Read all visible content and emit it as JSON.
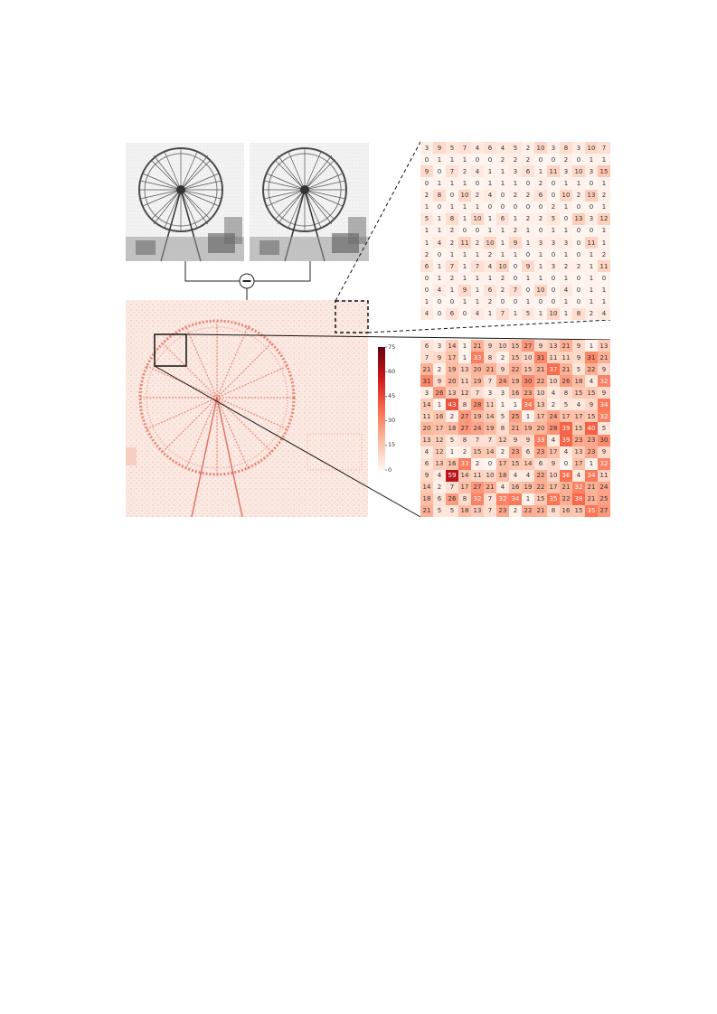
{
  "operator_symbol": "−",
  "colorbar": {
    "ticks": [
      "75",
      "60",
      "45",
      "30",
      "15",
      "0"
    ],
    "colors": [
      "#fff5f0",
      "#fcbba1",
      "#fb6a4a",
      "#cb181d",
      "#67000d"
    ]
  },
  "small_matrix": [
    [
      3,
      9,
      5,
      7,
      4,
      6,
      4,
      5,
      2,
      10,
      3,
      8,
      3,
      10,
      7
    ],
    [
      0,
      1,
      1,
      1,
      0,
      0,
      2,
      2,
      2,
      0,
      0,
      2,
      0,
      1,
      1
    ],
    [
      9,
      0,
      7,
      2,
      4,
      1,
      1,
      3,
      6,
      1,
      11,
      3,
      10,
      3,
      15
    ],
    [
      0,
      1,
      1,
      1,
      0,
      1,
      1,
      1,
      0,
      2,
      0,
      1,
      1,
      0,
      1
    ],
    [
      2,
      8,
      0,
      10,
      2,
      4,
      0,
      2,
      2,
      6,
      0,
      10,
      2,
      13,
      2
    ],
    [
      1,
      0,
      1,
      1,
      1,
      0,
      0,
      0,
      0,
      0,
      2,
      1,
      0,
      0,
      1
    ],
    [
      5,
      1,
      8,
      1,
      10,
      1,
      6,
      1,
      2,
      2,
      5,
      0,
      13,
      3,
      12
    ],
    [
      1,
      1,
      2,
      0,
      0,
      1,
      1,
      2,
      1,
      0,
      1,
      1,
      0,
      0,
      1
    ],
    [
      1,
      4,
      2,
      11,
      2,
      10,
      1,
      9,
      1,
      3,
      3,
      3,
      0,
      11,
      1
    ],
    [
      2,
      0,
      1,
      1,
      1,
      2,
      1,
      1,
      0,
      1,
      0,
      1,
      0,
      1,
      2
    ],
    [
      6,
      1,
      7,
      1,
      7,
      4,
      10,
      0,
      9,
      1,
      3,
      2,
      2,
      1,
      11
    ],
    [
      0,
      1,
      2,
      1,
      1,
      1,
      2,
      0,
      1,
      1,
      0,
      1,
      0,
      1,
      0
    ],
    [
      0,
      4,
      1,
      9,
      1,
      6,
      2,
      7,
      0,
      10,
      0,
      4,
      0,
      1,
      1
    ],
    [
      1,
      0,
      0,
      1,
      1,
      2,
      0,
      0,
      1,
      0,
      0,
      1,
      0,
      1,
      1
    ],
    [
      4,
      0,
      6,
      0,
      4,
      1,
      7,
      1,
      5,
      1,
      10,
      1,
      8,
      2,
      4
    ]
  ],
  "big_matrix": [
    [
      6,
      3,
      14,
      1,
      21,
      9,
      10,
      15,
      27,
      9,
      13,
      21,
      9,
      1,
      13
    ],
    [
      7,
      9,
      17,
      1,
      33,
      8,
      2,
      15,
      10,
      31,
      11,
      11,
      9,
      31,
      21
    ],
    [
      21,
      2,
      19,
      13,
      20,
      21,
      9,
      22,
      15,
      21,
      37,
      21,
      5,
      22,
      9
    ],
    [
      31,
      9,
      20,
      11,
      19,
      7,
      24,
      19,
      30,
      22,
      10,
      26,
      18,
      4,
      32
    ],
    [
      3,
      26,
      13,
      12,
      7,
      3,
      3,
      16,
      23,
      10,
      4,
      8,
      15,
      15,
      9
    ],
    [
      14,
      1,
      43,
      8,
      28,
      11,
      1,
      1,
      34,
      13,
      2,
      5,
      4,
      9,
      34
    ],
    [
      11,
      16,
      2,
      27,
      19,
      14,
      5,
      25,
      1,
      17,
      24,
      17,
      17,
      15,
      32
    ],
    [
      20,
      17,
      18,
      27,
      24,
      19,
      8,
      21,
      19,
      20,
      28,
      39,
      15,
      40,
      5
    ],
    [
      13,
      12,
      5,
      8,
      7,
      7,
      12,
      9,
      9,
      33,
      4,
      39,
      23,
      23,
      30
    ],
    [
      4,
      12,
      1,
      2,
      15,
      14,
      2,
      23,
      6,
      23,
      17,
      4,
      13,
      23,
      9
    ],
    [
      6,
      13,
      16,
      33,
      2,
      0,
      17,
      15,
      14,
      6,
      9,
      0,
      17,
      1,
      32
    ],
    [
      9,
      4,
      59,
      14,
      11,
      10,
      18,
      4,
      4,
      22,
      10,
      36,
      4,
      34,
      11
    ],
    [
      14,
      2,
      7,
      17,
      27,
      21,
      4,
      16,
      19,
      22,
      17,
      21,
      32,
      21,
      24
    ],
    [
      18,
      6,
      26,
      8,
      32,
      7,
      32,
      34,
      1,
      15,
      35,
      22,
      38,
      21,
      25
    ],
    [
      21,
      5,
      5,
      18,
      13,
      7,
      23,
      2,
      22,
      21,
      8,
      16,
      15,
      35,
      27
    ]
  ]
}
